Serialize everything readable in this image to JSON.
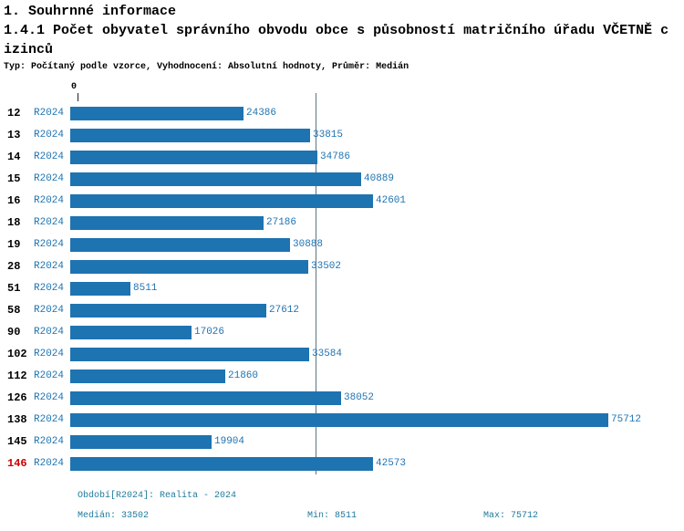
{
  "header": {
    "line1": "1. Souhrnné informace",
    "line2": "1.4.1 Počet obyvatel správního obvodu obce s působností matričního úřadu VČETNĚ c",
    "line3": "izinců",
    "subtitle": "Typ: Počítaný podle vzorce, Vyhodnocení: Absolutní hodnoty, Průměr: Medián"
  },
  "chart_data": {
    "type": "bar",
    "orientation": "horizontal",
    "title": "1.4.1 Počet obyvatel správního obvodu obce s působností matričního úřadu VČETNĚ cizinců",
    "categories": [
      "12",
      "13",
      "14",
      "15",
      "16",
      "18",
      "19",
      "28",
      "51",
      "58",
      "90",
      "102",
      "112",
      "126",
      "138",
      "145",
      "146"
    ],
    "series": [
      {
        "name": "R2024",
        "values": [
          24386,
          33815,
          34786,
          40889,
          42601,
          27186,
          30888,
          33502,
          8511,
          27612,
          17026,
          33584,
          21860,
          38052,
          75712,
          19904,
          42573
        ]
      }
    ],
    "xlim": [
      0,
      77000
    ],
    "x_axis_zero_label": "0",
    "median_value": 33502,
    "min_value": 8511,
    "max_value": 75712,
    "grid": "single vertical median line",
    "legend_position": "none",
    "bar_color": "#1e73b1",
    "highlight_category": "146",
    "highlight_color": "#cc0000"
  },
  "footer": {
    "period": "Období[R2024]: Realita - 2024",
    "median": "Medián: 33502",
    "min": "Min: 8511",
    "max": "Max: 75712"
  }
}
